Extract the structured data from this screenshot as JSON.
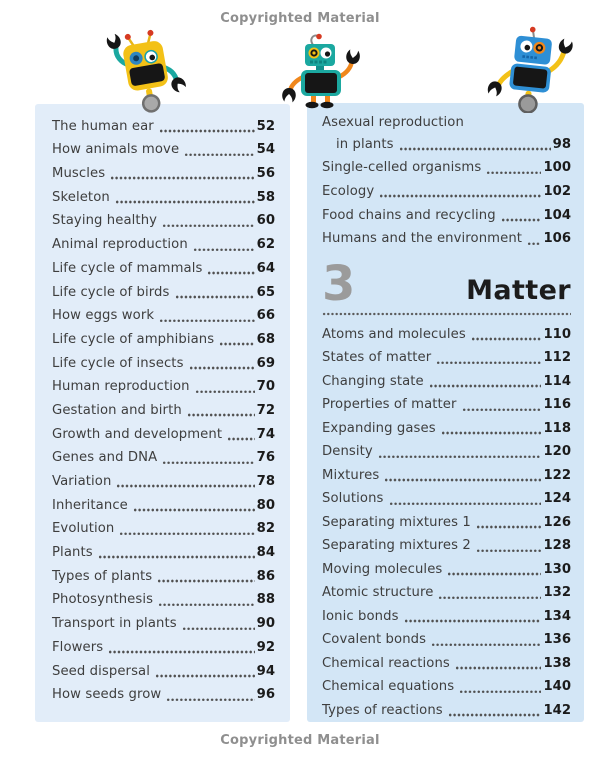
{
  "page": {
    "copyright_top": "Copyrighted Material",
    "copyright_bottom": "Copyrighted Material"
  },
  "toc_left": {
    "entries": [
      {
        "label": "The human ear",
        "page": "52"
      },
      {
        "label": "How animals move",
        "page": "54"
      },
      {
        "label": "Muscles",
        "page": "56"
      },
      {
        "label": "Skeleton",
        "page": "58"
      },
      {
        "label": "Staying healthy",
        "page": "60"
      },
      {
        "label": "Animal reproduction",
        "page": "62"
      },
      {
        "label": "Life cycle of mammals",
        "page": "64"
      },
      {
        "label": "Life cycle of birds",
        "page": "65"
      },
      {
        "label": "How eggs work",
        "page": "66"
      },
      {
        "label": "Life cycle of amphibians",
        "page": "68"
      },
      {
        "label": "Life cycle of insects",
        "page": "69"
      },
      {
        "label": "Human reproduction",
        "page": "70"
      },
      {
        "label": "Gestation and birth",
        "page": "72"
      },
      {
        "label": "Growth and development",
        "page": "74"
      },
      {
        "label": "Genes and DNA",
        "page": "76"
      },
      {
        "label": "Variation",
        "page": "78"
      },
      {
        "label": "Inheritance",
        "page": "80"
      },
      {
        "label": "Evolution",
        "page": "82"
      },
      {
        "label": "Plants",
        "page": "84"
      },
      {
        "label": "Types of plants",
        "page": "86"
      },
      {
        "label": "Photosynthesis",
        "page": "88"
      },
      {
        "label": "Transport in plants",
        "page": "90"
      },
      {
        "label": "Flowers",
        "page": "92"
      },
      {
        "label": "Seed dispersal",
        "page": "94"
      },
      {
        "label": "How seeds grow",
        "page": "96"
      }
    ]
  },
  "toc_right": {
    "entries_top": [
      {
        "label": "Asexual reproduction",
        "label2": "in plants",
        "page": "98"
      },
      {
        "label": "Single-celled organisms",
        "page": "100"
      },
      {
        "label": "Ecology",
        "page": "102"
      },
      {
        "label": "Food chains and recycling",
        "page": "104"
      },
      {
        "label": "Humans and the environment",
        "page": "106"
      }
    ],
    "section": {
      "number": "3",
      "title": "Matter"
    },
    "entries_bottom": [
      {
        "label": "Atoms and molecules",
        "page": "110"
      },
      {
        "label": "States of matter",
        "page": "112"
      },
      {
        "label": "Changing state",
        "page": "114"
      },
      {
        "label": "Properties of matter",
        "page": "116"
      },
      {
        "label": "Expanding gases",
        "page": "118"
      },
      {
        "label": "Density",
        "page": "120"
      },
      {
        "label": "Mixtures",
        "page": "122"
      },
      {
        "label": "Solutions",
        "page": "124"
      },
      {
        "label": "Separating mixtures 1",
        "page": "126"
      },
      {
        "label": "Separating mixtures 2",
        "page": "128"
      },
      {
        "label": "Moving molecules",
        "page": "130"
      },
      {
        "label": "Atomic structure",
        "page": "132"
      },
      {
        "label": "Ionic bonds",
        "page": "134"
      },
      {
        "label": "Covalent bonds",
        "page": "136"
      },
      {
        "label": "Chemical reactions",
        "page": "138"
      },
      {
        "label": "Chemical equations",
        "page": "140"
      },
      {
        "label": "Types of reactions",
        "page": "142"
      }
    ]
  },
  "icons": {
    "robots": [
      "robot-yellow-icon",
      "robot-teal-icon",
      "robot-blue-icon"
    ]
  },
  "colors": {
    "panel_left_bg": "#e2edf9",
    "panel_right_bg": "#d3e6f6",
    "entry_text": "#3e3e3e",
    "page_number": "#1b1b1b",
    "section_number": "#9b9b9b",
    "section_title": "#1c1c1c",
    "copyright_text": "#8f8f8f",
    "robot_yellow": "#f3c117",
    "robot_teal": "#1ba8a0",
    "robot_blue": "#2e8fd5",
    "robot_orange": "#f0871c",
    "antenna_red": "#d63a22"
  }
}
